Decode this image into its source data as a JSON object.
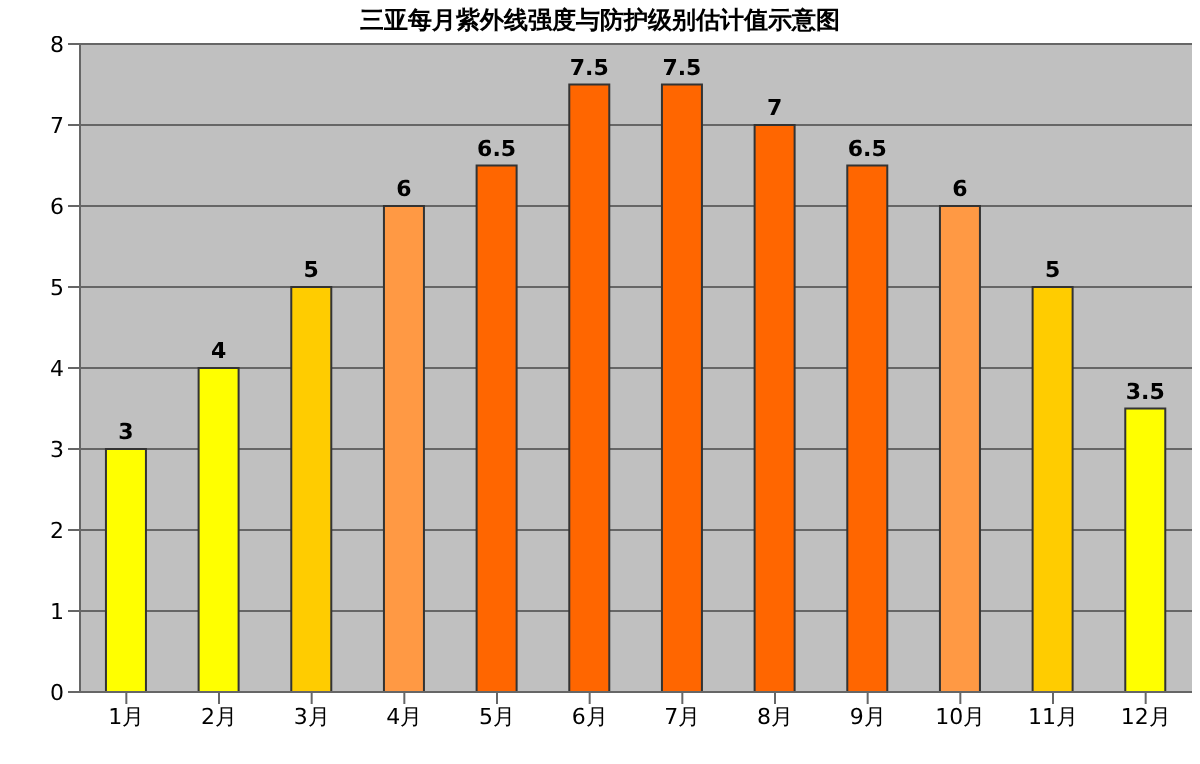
{
  "chart_data": {
    "type": "bar",
    "title": "三亚每月紫外线强度与防护级别估计值示意图",
    "categories": [
      "1月",
      "2月",
      "3月",
      "4月",
      "5月",
      "6月",
      "7月",
      "8月",
      "9月",
      "10月",
      "11月",
      "12月"
    ],
    "values": [
      3,
      4,
      5,
      6,
      6.5,
      7.5,
      7.5,
      7,
      6.5,
      6,
      5,
      3.5
    ],
    "colors": [
      "#ffff00",
      "#ffff00",
      "#ffcc00",
      "#ff9944",
      "#ff6600",
      "#ff6600",
      "#ff6600",
      "#ff6600",
      "#ff6600",
      "#ff9944",
      "#ffcc00",
      "#ffff00"
    ],
    "ylim": [
      0,
      8
    ],
    "yticks": [
      0,
      1,
      2,
      3,
      4,
      5,
      6,
      7,
      8
    ],
    "grid": "y",
    "data_labels": true
  }
}
